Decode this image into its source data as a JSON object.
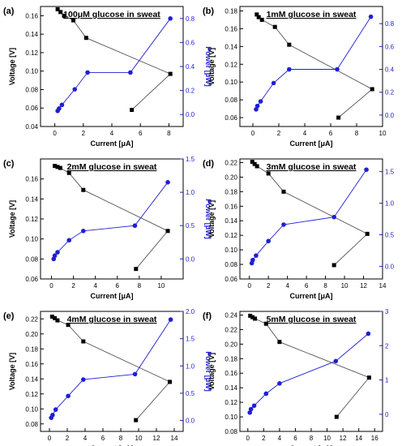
{
  "colors": {
    "voltage": "#000000",
    "power": "#1f1fd6",
    "line": "#555555"
  },
  "axis_labels": {
    "x": "Current [μA]",
    "y_left": "Voltage [V]",
    "y_right": "Power [μW]"
  },
  "chart_data": [
    {
      "panel": "(a)",
      "title": "100μM glucose in sweat",
      "type": "scatter",
      "xlabel": "Current [μA]",
      "ylabel": "Voltage [V]",
      "y2label": "Power [μW]",
      "xlim": [
        -1,
        9
      ],
      "xticks": [
        0,
        2,
        4,
        6,
        8
      ],
      "ylim": [
        0.04,
        0.17
      ],
      "yticks": [
        0.04,
        0.06,
        0.08,
        0.1,
        0.12,
        0.14,
        0.16
      ],
      "y2lim": [
        -0.1,
        0.9
      ],
      "y2ticks": [
        0.0,
        0.2,
        0.4,
        0.6,
        0.8
      ],
      "series": [
        {
          "name": "Voltage",
          "axis": "left",
          "marker": "square",
          "x": [
            0.2,
            0.4,
            0.65,
            1.3,
            2.2,
            8.1,
            5.4
          ],
          "y": [
            0.167,
            0.164,
            0.16,
            0.155,
            0.136,
            0.097,
            0.058
          ]
        },
        {
          "name": "Power",
          "axis": "right",
          "marker": "circle",
          "x": [
            0.2,
            0.3,
            0.5,
            1.4,
            2.3,
            5.3,
            8.1
          ],
          "y": [
            0.03,
            0.05,
            0.08,
            0.21,
            0.35,
            0.35,
            0.8
          ]
        }
      ]
    },
    {
      "panel": "(b)",
      "title": "1mM glucose in sweat",
      "type": "scatter",
      "xlabel": "Current [μA]",
      "ylabel": "Voltage [V]",
      "y2label": "Power [μW]",
      "xlim": [
        -1,
        10
      ],
      "xticks": [
        0,
        2,
        4,
        6,
        8,
        10
      ],
      "ylim": [
        0.05,
        0.185
      ],
      "yticks": [
        0.06,
        0.08,
        0.1,
        0.12,
        0.14,
        0.16,
        0.18
      ],
      "y2lim": [
        -0.1,
        0.95
      ],
      "y2ticks": [
        0.0,
        0.2,
        0.4,
        0.6,
        0.8
      ],
      "series": [
        {
          "name": "Voltage",
          "axis": "left",
          "marker": "square",
          "x": [
            0.3,
            0.45,
            0.7,
            1.7,
            2.8,
            9.2,
            6.6
          ],
          "y": [
            0.176,
            0.173,
            0.17,
            0.162,
            0.142,
            0.092,
            0.06
          ]
        },
        {
          "name": "Power",
          "axis": "right",
          "marker": "circle",
          "x": [
            0.25,
            0.35,
            0.6,
            1.6,
            2.8,
            6.5,
            9.1
          ],
          "y": [
            0.05,
            0.08,
            0.12,
            0.28,
            0.4,
            0.4,
            0.86
          ]
        }
      ]
    },
    {
      "panel": "(c)",
      "title": "2mM glucose in sweat",
      "type": "scatter",
      "xlabel": "Current [μA]",
      "ylabel": "Voltage [V]",
      "y2label": "Power [μW]",
      "xlim": [
        -1,
        12
      ],
      "xticks": [
        0,
        2,
        4,
        6,
        8,
        10
      ],
      "ylim": [
        0.06,
        0.18
      ],
      "yticks": [
        0.06,
        0.08,
        0.1,
        0.12,
        0.14,
        0.16
      ],
      "y2lim": [
        -0.3,
        1.5
      ],
      "y2ticks": [
        0.0,
        0.5,
        1.0,
        1.5
      ],
      "series": [
        {
          "name": "Voltage",
          "axis": "left",
          "marker": "square",
          "x": [
            0.3,
            0.55,
            0.8,
            1.6,
            2.9,
            10.6,
            7.7
          ],
          "y": [
            0.173,
            0.172,
            0.171,
            0.166,
            0.149,
            0.108,
            0.07
          ]
        },
        {
          "name": "Power",
          "axis": "right",
          "marker": "circle",
          "x": [
            0.2,
            0.3,
            0.55,
            1.6,
            2.9,
            7.6,
            10.6
          ],
          "y": [
            0.0,
            0.05,
            0.1,
            0.28,
            0.42,
            0.5,
            1.15
          ]
        }
      ]
    },
    {
      "panel": "(d)",
      "title": "3mM glucose in sweat",
      "type": "scatter",
      "xlabel": "Current [μA]",
      "ylabel": "Voltage [V]",
      "y2label": "Power [μW]",
      "xlim": [
        -1,
        14
      ],
      "xticks": [
        0,
        2,
        4,
        6,
        8,
        10,
        12,
        14
      ],
      "ylim": [
        0.06,
        0.225
      ],
      "yticks": [
        0.06,
        0.08,
        0.1,
        0.12,
        0.14,
        0.16,
        0.18,
        0.2,
        0.22
      ],
      "y2lim": [
        -0.2,
        1.7
      ],
      "y2ticks": [
        0.0,
        0.5,
        1.0,
        1.5
      ],
      "series": [
        {
          "name": "Voltage",
          "axis": "left",
          "marker": "square",
          "x": [
            0.3,
            0.55,
            0.8,
            2.0,
            3.6,
            12.4,
            8.9
          ],
          "y": [
            0.221,
            0.218,
            0.215,
            0.205,
            0.18,
            0.122,
            0.079
          ]
        },
        {
          "name": "Power",
          "axis": "right",
          "marker": "circle",
          "x": [
            0.25,
            0.35,
            0.7,
            2.0,
            3.6,
            8.9,
            12.3
          ],
          "y": [
            0.05,
            0.1,
            0.17,
            0.4,
            0.66,
            0.78,
            1.53
          ]
        }
      ]
    },
    {
      "panel": "(e)",
      "title": "4mM glucose in sweat",
      "type": "scatter",
      "xlabel": "Current [μA]",
      "ylabel": "Voltage [V]",
      "y2label": "Power [μW]",
      "xlim": [
        -1,
        15
      ],
      "xticks": [
        0,
        2,
        4,
        6,
        8,
        10,
        12,
        14
      ],
      "ylim": [
        0.07,
        0.23
      ],
      "yticks": [
        0.08,
        0.1,
        0.12,
        0.14,
        0.16,
        0.18,
        0.2,
        0.22
      ],
      "y2lim": [
        -0.2,
        2.0
      ],
      "y2ticks": [
        0.0,
        0.5,
        1.0,
        1.5,
        2.0
      ],
      "series": [
        {
          "name": "Voltage",
          "axis": "left",
          "marker": "square",
          "x": [
            0.3,
            0.6,
            0.9,
            2.1,
            3.8,
            13.5,
            9.7
          ],
          "y": [
            0.223,
            0.221,
            0.218,
            0.212,
            0.19,
            0.136,
            0.085
          ]
        },
        {
          "name": "Power",
          "axis": "right",
          "marker": "circle",
          "x": [
            0.2,
            0.35,
            0.7,
            2.1,
            3.8,
            9.6,
            13.6
          ],
          "y": [
            0.05,
            0.1,
            0.2,
            0.45,
            0.75,
            0.85,
            1.85
          ]
        }
      ]
    },
    {
      "panel": "(f)",
      "title": "5mM glucose in sweat",
      "type": "scatter",
      "xlabel": "Current [μA]",
      "ylabel": "Voltage [V]",
      "y2label": "Power [μW]",
      "xlim": [
        -1,
        17
      ],
      "xticks": [
        0,
        2,
        4,
        6,
        8,
        10,
        12,
        14,
        16
      ],
      "ylim": [
        0.08,
        0.245
      ],
      "yticks": [
        0.08,
        0.1,
        0.12,
        0.14,
        0.16,
        0.18,
        0.2,
        0.22,
        0.24
      ],
      "y2lim": [
        -0.5,
        3.0
      ],
      "y2ticks": [
        0,
        1,
        2,
        3
      ],
      "series": [
        {
          "name": "Voltage",
          "axis": "left",
          "marker": "square",
          "x": [
            0.3,
            0.6,
            0.9,
            2.3,
            4.0,
            15.3,
            11.2
          ],
          "y": [
            0.239,
            0.237,
            0.235,
            0.228,
            0.203,
            0.154,
            0.1
          ]
        },
        {
          "name": "Power",
          "axis": "right",
          "marker": "circle",
          "x": [
            0.25,
            0.4,
            0.8,
            2.3,
            4.0,
            11.1,
            15.2
          ],
          "y": [
            0.05,
            0.15,
            0.25,
            0.6,
            0.9,
            1.55,
            2.35
          ]
        }
      ]
    }
  ]
}
